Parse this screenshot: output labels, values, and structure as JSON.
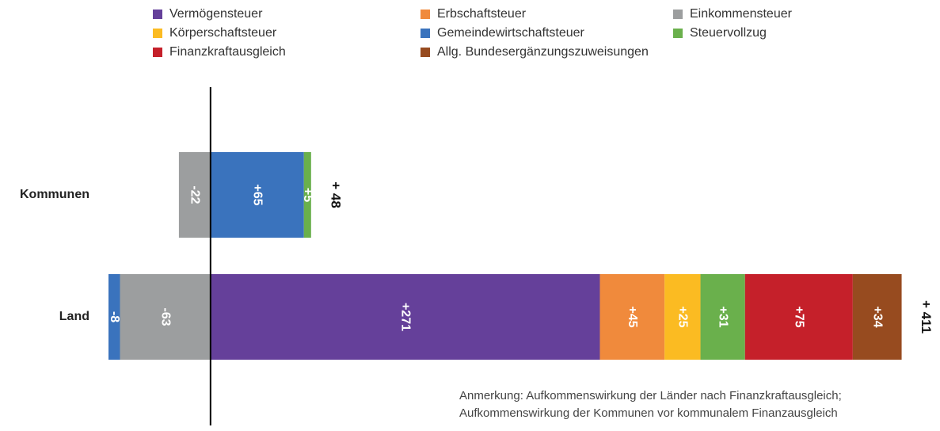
{
  "chart_data": {
    "type": "stacked-bar-horizontal",
    "categories": [
      "Kommunen",
      "Land"
    ],
    "series": [
      {
        "name": "Vermögensteuer",
        "color": "#65409a",
        "values": [
          null,
          271
        ],
        "value_labels": [
          null,
          "+271"
        ]
      },
      {
        "name": "Erbschaftsteuer",
        "color": "#f08a3c",
        "values": [
          null,
          45
        ],
        "value_labels": [
          null,
          "+45"
        ]
      },
      {
        "name": "Einkommensteuer",
        "color": "#9c9e9f",
        "values": [
          -22,
          -63
        ]
      },
      {
        "name": "Körperschaftsteuer",
        "color": "#fbbb22",
        "values": [
          null,
          25
        ],
        "value_labels": [
          null,
          "+25"
        ]
      },
      {
        "name": "Gemeindewirtschaftsteuer",
        "color": "#3a73bd",
        "values": [
          65,
          -8
        ],
        "value_labels": [
          "+65",
          "-8"
        ]
      },
      {
        "name": "Steuervollzug",
        "color": "#6ab04c",
        "values": [
          5,
          31
        ],
        "value_labels": [
          "+5",
          "+31"
        ]
      },
      {
        "name": "Finanzkraftausgleich",
        "color": "#c5202a",
        "values": [
          null,
          75
        ],
        "value_labels": [
          null,
          "+75"
        ]
      },
      {
        "name": "Allg. Bundesergänzungszuweisungen",
        "color": "#974b1f",
        "values": [
          null,
          34
        ],
        "value_labels": [
          null,
          "+34"
        ]
      }
    ],
    "total_labels": [
      "+ 48",
      "+ 411"
    ],
    "xlim": [
      -71,
      484
    ],
    "note": [
      "Anmerkung: Aufkommenswirkung der Länder nach Finanzkraftausgleich;",
      "Aufkommenswirkung der Kommunen vor kommunalem Finanzausgleich"
    ]
  }
}
